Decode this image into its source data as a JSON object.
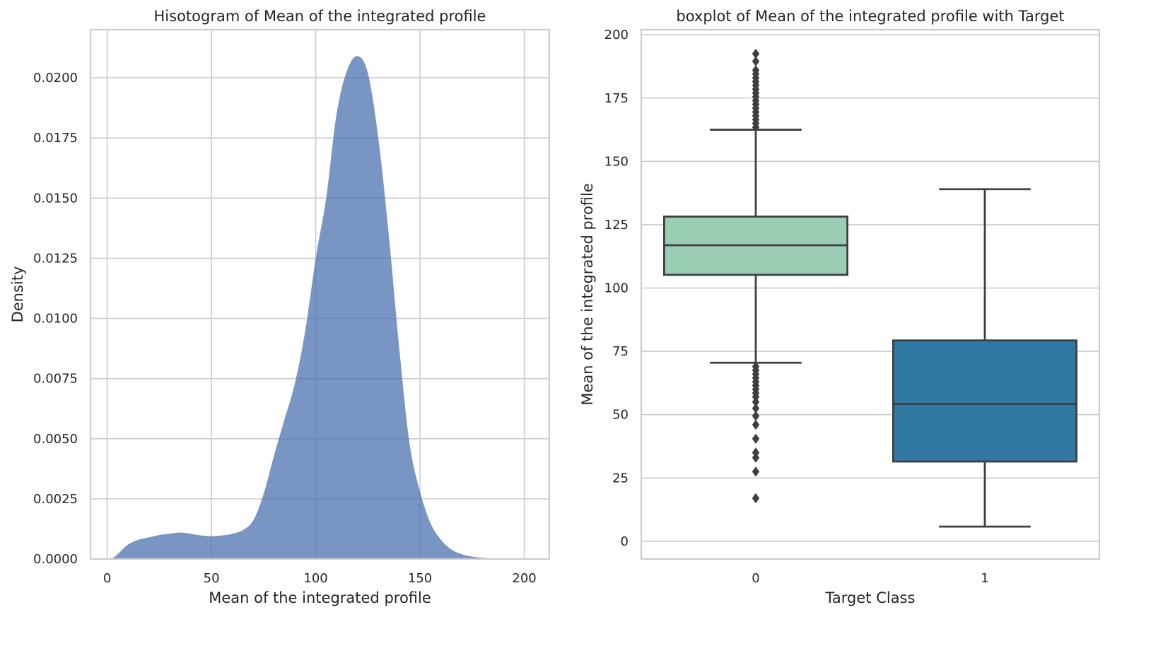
{
  "chart_data": [
    {
      "type": "area",
      "title": "Hisotogram of Mean of the integrated profile",
      "xlabel": "Mean of the integrated profile",
      "ylabel": "Density",
      "xlim": [
        -8,
        212
      ],
      "ylim": [
        0,
        0.022
      ],
      "x_ticks": [
        0,
        50,
        100,
        150,
        200
      ],
      "x_tick_labels": [
        "0",
        "50",
        "100",
        "150",
        "200"
      ],
      "y_ticks": [
        0,
        0.0025,
        0.005,
        0.0075,
        0.01,
        0.0125,
        0.015,
        0.0175,
        0.02
      ],
      "y_tick_labels": [
        "0.0000",
        "0.0025",
        "0.0050",
        "0.0075",
        "0.0100",
        "0.0125",
        "0.0150",
        "0.0175",
        "0.0200"
      ],
      "grid": true,
      "fill_color": "#4c72b0",
      "x": [
        2,
        5,
        10,
        15,
        20,
        25,
        30,
        35,
        40,
        45,
        50,
        55,
        60,
        65,
        70,
        75,
        80,
        85,
        90,
        95,
        100,
        105,
        110,
        115,
        120,
        125,
        130,
        135,
        140,
        145,
        150,
        155,
        160,
        165,
        170,
        175,
        180,
        185,
        190,
        195,
        200
      ],
      "y": [
        0,
        0.0002,
        0.0006,
        0.0008,
        0.0009,
        0.001,
        0.00105,
        0.0011,
        0.00105,
        0.00098,
        0.00095,
        0.00098,
        0.00105,
        0.0012,
        0.0016,
        0.0027,
        0.0043,
        0.0058,
        0.0073,
        0.0095,
        0.0125,
        0.015,
        0.0185,
        0.0203,
        0.0209,
        0.0202,
        0.0175,
        0.0135,
        0.0088,
        0.0048,
        0.0028,
        0.0015,
        0.0008,
        0.0004,
        0.0002,
        0.0001,
        5e-05,
        2e-05,
        1e-05,
        0,
        0
      ]
    },
    {
      "type": "box",
      "title": "boxplot of Mean of the integrated profile with Target",
      "xlabel": "Target Class",
      "ylabel": "Mean of the integrated profile",
      "categories": [
        "0",
        "1"
      ],
      "ylim": [
        -7,
        202
      ],
      "y_ticks": [
        0,
        25,
        50,
        75,
        100,
        125,
        150,
        175,
        200
      ],
      "y_tick_labels": [
        "0",
        "25",
        "50",
        "75",
        "100",
        "125",
        "150",
        "175",
        "200"
      ],
      "grid": true,
      "boxes": [
        {
          "category": "0",
          "color": "#9bcdb5",
          "whisker_low": 70.5,
          "q1": 105.2,
          "median": 116.9,
          "q3": 128.2,
          "whisker_high": 162.5,
          "outliers": [
            17,
            27.5,
            33,
            35,
            40.5,
            46,
            49.5,
            52.5,
            55,
            57,
            58.5,
            60,
            61.5,
            63,
            64.5,
            66,
            67.5,
            69,
            163.5,
            165,
            166.5,
            168,
            169.5,
            171,
            172.5,
            174,
            175.5,
            177,
            178.5,
            180,
            181.5,
            183,
            184.5,
            186,
            189.5,
            192.5
          ]
        },
        {
          "category": "1",
          "color": "#2f79a4",
          "whisker_low": 5.8,
          "q1": 31.5,
          "median": 54.2,
          "q3": 79.3,
          "whisker_high": 139,
          "outliers": []
        }
      ]
    }
  ]
}
